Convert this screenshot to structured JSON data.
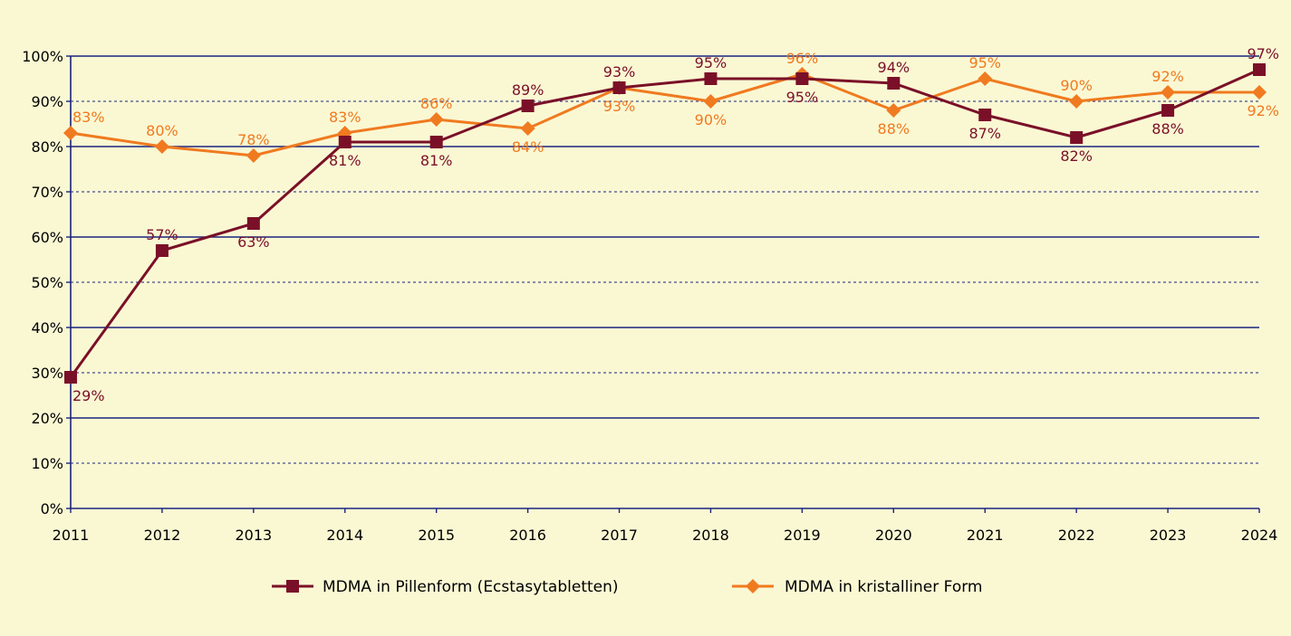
{
  "chart_data": {
    "type": "line",
    "title": "",
    "xlabel": "",
    "ylabel": "",
    "x": [
      "2011",
      "2012",
      "2013",
      "2014",
      "2015",
      "2016",
      "2017",
      "2018",
      "2019",
      "2020",
      "2021",
      "2022",
      "2023",
      "2024"
    ],
    "ylim": [
      0,
      100
    ],
    "y_ticks": [
      "0%",
      "10%",
      "20%",
      "30%",
      "40%",
      "50%",
      "60%",
      "70%",
      "80%",
      "90%",
      "100%"
    ],
    "grid": "horizontal: solid at 20% steps, dashed at odd 10% steps",
    "legend_position": "bottom",
    "series": [
      {
        "name": "MDMA in Pillenform (Ecstasytabletten)",
        "color": "#7A1028",
        "marker": "square",
        "values": [
          29,
          57,
          63,
          81,
          81,
          89,
          93,
          95,
          95,
          94,
          87,
          82,
          88,
          97
        ],
        "labels": [
          "29%",
          "57%",
          "63%",
          "81%",
          "81%",
          "89%",
          "93%",
          "95%",
          "95%",
          "94%",
          "87%",
          "82%",
          "88%",
          "97%"
        ],
        "label_side": [
          "below",
          "above",
          "below",
          "below",
          "below",
          "above",
          "above",
          "above",
          "below",
          "above",
          "below",
          "below",
          "below",
          "above"
        ]
      },
      {
        "name": "MDMA in kristalliner Form",
        "color": "#F07A20",
        "marker": "diamond",
        "values": [
          83,
          80,
          78,
          83,
          86,
          84,
          93,
          90,
          96,
          88,
          95,
          90,
          92,
          92
        ],
        "labels": [
          "83%",
          "80%",
          "78%",
          "83%",
          "86%",
          "84%",
          "93%",
          "90%",
          "96%",
          "88%",
          "95%",
          "90%",
          "92%",
          "92%"
        ],
        "label_side": [
          "above",
          "above",
          "above",
          "above",
          "above",
          "below",
          "below",
          "below",
          "above",
          "below",
          "above",
          "above",
          "above",
          "below"
        ]
      }
    ]
  }
}
